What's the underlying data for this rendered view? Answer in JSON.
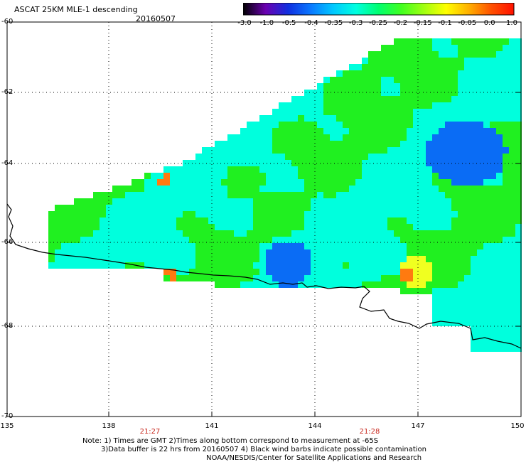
{
  "header": {
    "title": "ASCAT 25KM MLE-1 descending",
    "date": "20160507"
  },
  "colorbar": {
    "labels": [
      "-3.0",
      "-1.0",
      "-0.5",
      "-0.4",
      "-0.35",
      "-0.3",
      "-0.25",
      "-0.2",
      "-0.15",
      "-0.1",
      "-0.05",
      "0.0",
      "1.0"
    ],
    "colors": [
      "#000000",
      "#6a00b0",
      "#1030e0",
      "#0a78ff",
      "#00c8ff",
      "#00ffe0",
      "#00ff70",
      "#40ff20",
      "#a0ff10",
      "#ffff00",
      "#ffb000",
      "#ff5000",
      "#ff1000"
    ]
  },
  "axes": {
    "lat_labels": [
      "-60",
      "-62",
      "-64",
      "-66",
      "-68",
      "-70"
    ],
    "lon_labels": [
      "135",
      "138",
      "141",
      "144",
      "147",
      "150"
    ],
    "time_labels": [
      "21:27",
      "21:28"
    ]
  },
  "notes": {
    "line1": "Note: 1) Times are GMT 2)Times along bottom correspond to measurement at -65S",
    "line2": "3)Data buffer is 22 hrs from 20160507 4) Black wind barbs indicate possible contamination",
    "line3": "NOAA/NESDIS/Center for Satellite Applications and Research"
  },
  "palette": {
    "green": "#20f020",
    "cyan": "#00ffdd",
    "blue": "#0a6cf5",
    "yellow": "#f0ff20",
    "orange": "#ff7a10",
    "coast": "#000000"
  }
}
